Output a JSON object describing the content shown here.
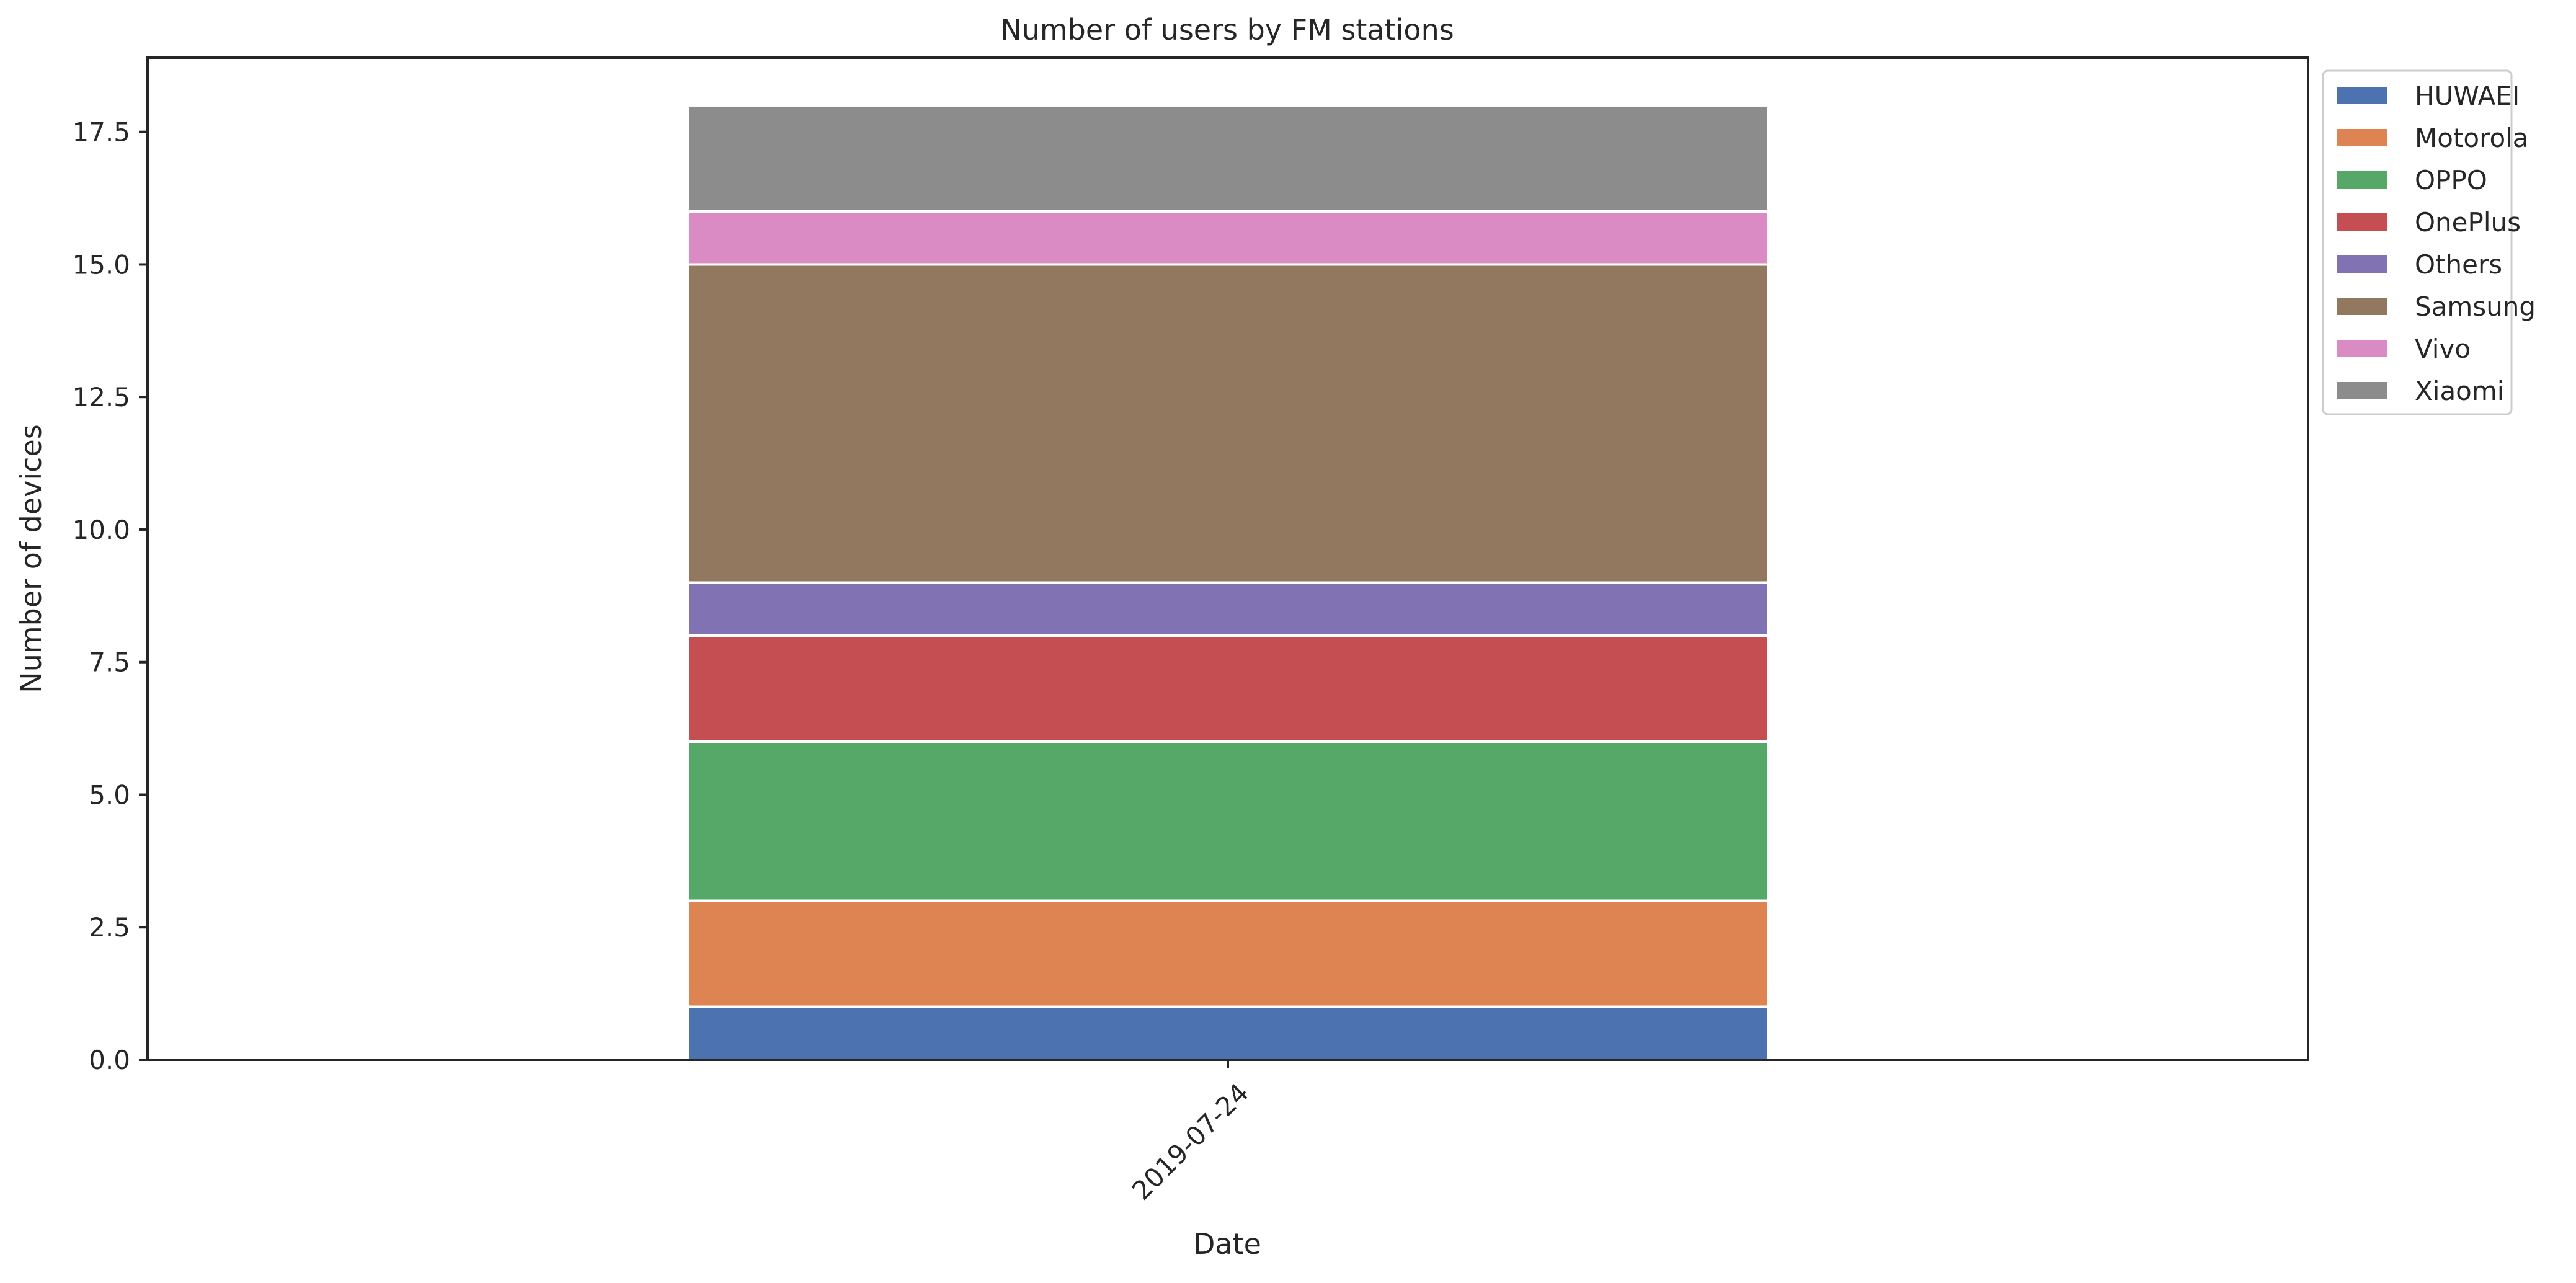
{
  "chart_data": {
    "type": "bar",
    "stacked": true,
    "title": "Number of users by FM stations",
    "xlabel": "Date",
    "ylabel": "Number of devices",
    "categories": [
      "2019-07-24"
    ],
    "ylim": [
      0,
      18.9
    ],
    "yticks": [
      "0.0",
      "2.5",
      "5.0",
      "7.5",
      "10.0",
      "12.5",
      "15.0",
      "17.5"
    ],
    "grid": false,
    "legend_position": "outside-top-right",
    "series": [
      {
        "name": "HUWAEI",
        "values": [
          1
        ],
        "color": "#4c72b0"
      },
      {
        "name": "Motorola",
        "values": [
          2
        ],
        "color": "#dd8452"
      },
      {
        "name": "OPPO",
        "values": [
          3
        ],
        "color": "#55a868"
      },
      {
        "name": "OnePlus",
        "values": [
          2
        ],
        "color": "#c44e52"
      },
      {
        "name": "Others",
        "values": [
          1
        ],
        "color": "#8172b3"
      },
      {
        "name": "Samsung",
        "values": [
          6
        ],
        "color": "#937860"
      },
      {
        "name": "Vivo",
        "values": [
          1
        ],
        "color": "#da8bc3"
      },
      {
        "name": "Xiaomi",
        "values": [
          2
        ],
        "color": "#8c8c8c"
      }
    ]
  }
}
